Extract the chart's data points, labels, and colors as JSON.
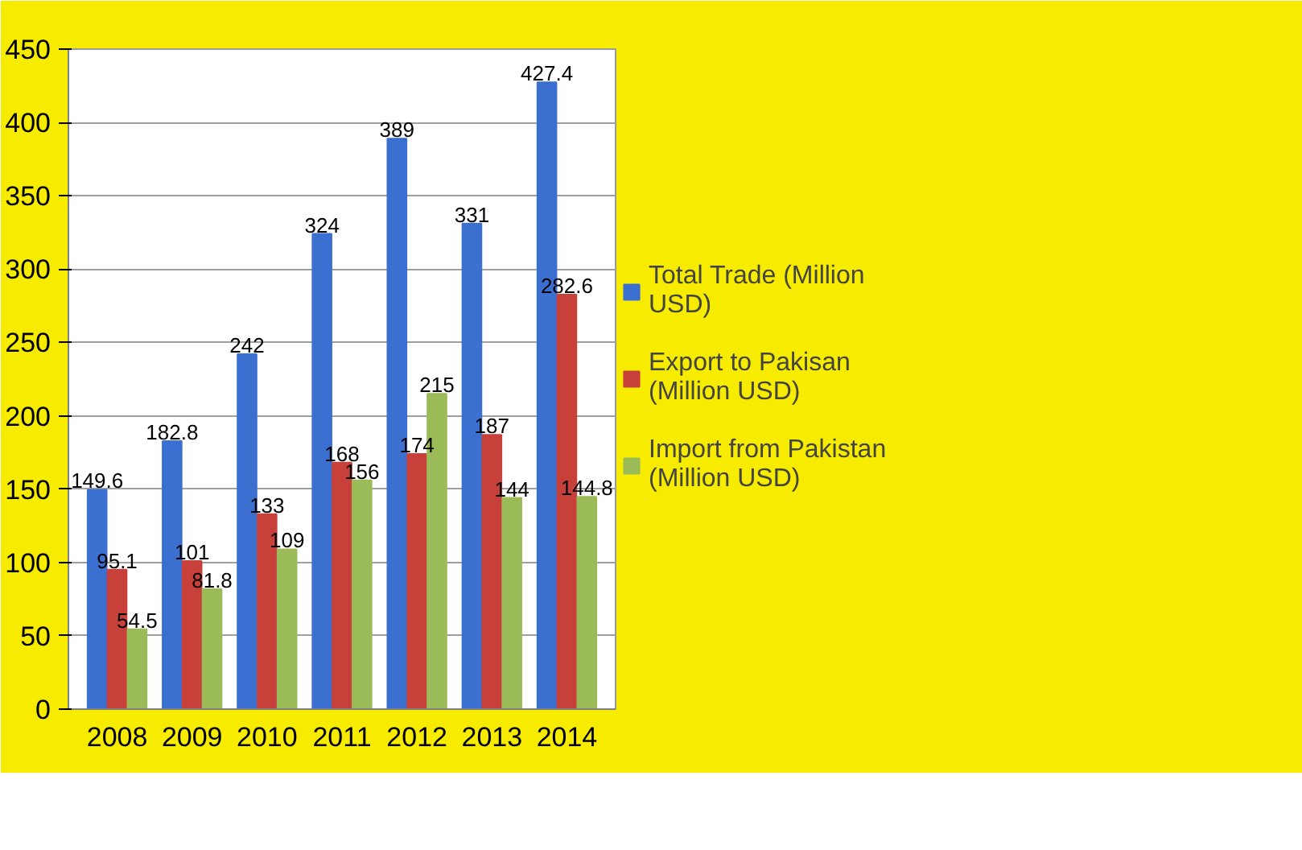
{
  "chart_data": {
    "type": "bar",
    "categories": [
      "2008",
      "2009",
      "2010",
      "2011",
      "2012",
      "2013",
      "2014"
    ],
    "series": [
      {
        "name": "Total Trade (Million USD)",
        "color": "#3b6fd0",
        "values": [
          149.6,
          182.8,
          242,
          324,
          389,
          331,
          427.4
        ]
      },
      {
        "name": "Export to Pakisan (Million USD)",
        "color": "#c8403a",
        "values": [
          95.1,
          101,
          133,
          168,
          174,
          187,
          282.6
        ]
      },
      {
        "name": "Import from Pakistan (Million USD)",
        "color": "#9bbb59",
        "values": [
          54.5,
          81.8,
          109,
          156,
          215,
          144,
          144.8
        ]
      }
    ],
    "ylim": [
      0,
      450
    ],
    "yticks": [
      0,
      50,
      100,
      150,
      200,
      250,
      300,
      350,
      400,
      450
    ],
    "grid": "y",
    "legend": "right",
    "data_labels": true
  }
}
